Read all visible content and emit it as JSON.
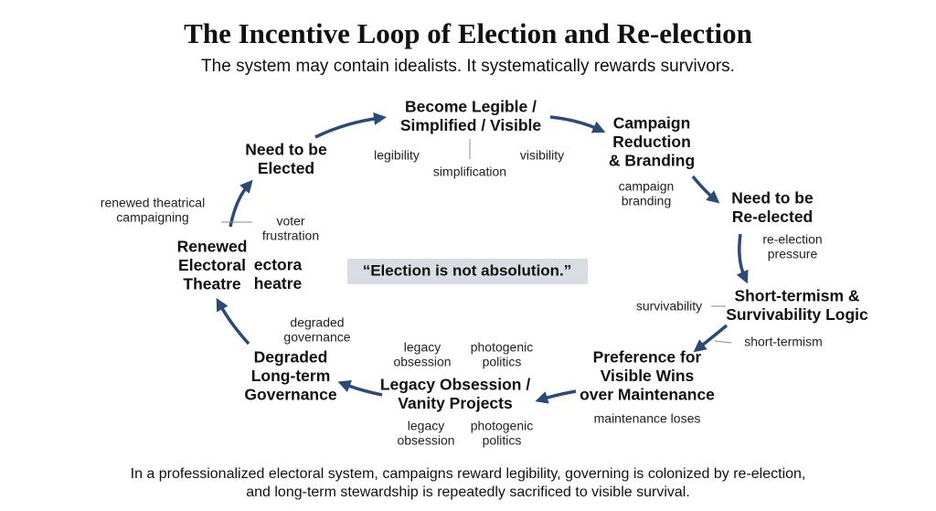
{
  "header": {
    "title": "The Incentive Loop of Election and Re-election",
    "subtitle": "The system may contain idealists. It systematically rewards survivors."
  },
  "nodes": [
    {
      "lines": [
        "Need to be",
        "Elected"
      ]
    },
    {
      "lines": [
        "Become Legible /",
        "Simplified / Visible"
      ]
    },
    {
      "lines": [
        "Campaign",
        "Reduction",
        "& Branding"
      ]
    },
    {
      "lines": [
        "Need to be",
        "Re-elected"
      ]
    },
    {
      "lines": [
        "Short-termism &",
        "Survivability Logic"
      ]
    },
    {
      "lines": [
        "Preference for",
        "Visible Wins",
        "over Maintenance"
      ]
    },
    {
      "lines": [
        "Legacy Obsession /",
        "Vanity Projects"
      ]
    },
    {
      "lines": [
        "Degraded",
        "Long-term",
        "Governance"
      ]
    },
    {
      "lines": [
        "Renewed",
        "Electoral",
        "Theatre"
      ]
    }
  ],
  "ghost": {
    "lines": [
      "ectora",
      "heatre"
    ]
  },
  "labels": [
    {
      "lines": [
        "legibility"
      ]
    },
    {
      "lines": [
        "simplification"
      ]
    },
    {
      "lines": [
        "visibility"
      ]
    },
    {
      "lines": [
        "campaign",
        "branding"
      ]
    },
    {
      "lines": [
        "re-election",
        "pressure"
      ]
    },
    {
      "lines": [
        "survivability"
      ]
    },
    {
      "lines": [
        "short-termism"
      ]
    },
    {
      "lines": [
        "maintenance loses"
      ]
    },
    {
      "lines": [
        "legacy",
        "obsession"
      ]
    },
    {
      "lines": [
        "photogenic",
        "politics"
      ]
    },
    {
      "lines": [
        "legacy",
        "obsession"
      ]
    },
    {
      "lines": [
        "photogenic",
        "politics"
      ]
    },
    {
      "lines": [
        "degraded",
        "governance"
      ]
    },
    {
      "lines": [
        "renewed theatrical",
        "campaigning"
      ]
    },
    {
      "lines": [
        "voter",
        "frustration"
      ]
    }
  ],
  "quote": "“Election is not absolution.”",
  "footer": {
    "lines": [
      "In a professionalized electoral system, campaigns reward legibility, governing is colonized by re-election,",
      "and long-term stewardship is repeatedly sacrificed to visible survival."
    ]
  }
}
